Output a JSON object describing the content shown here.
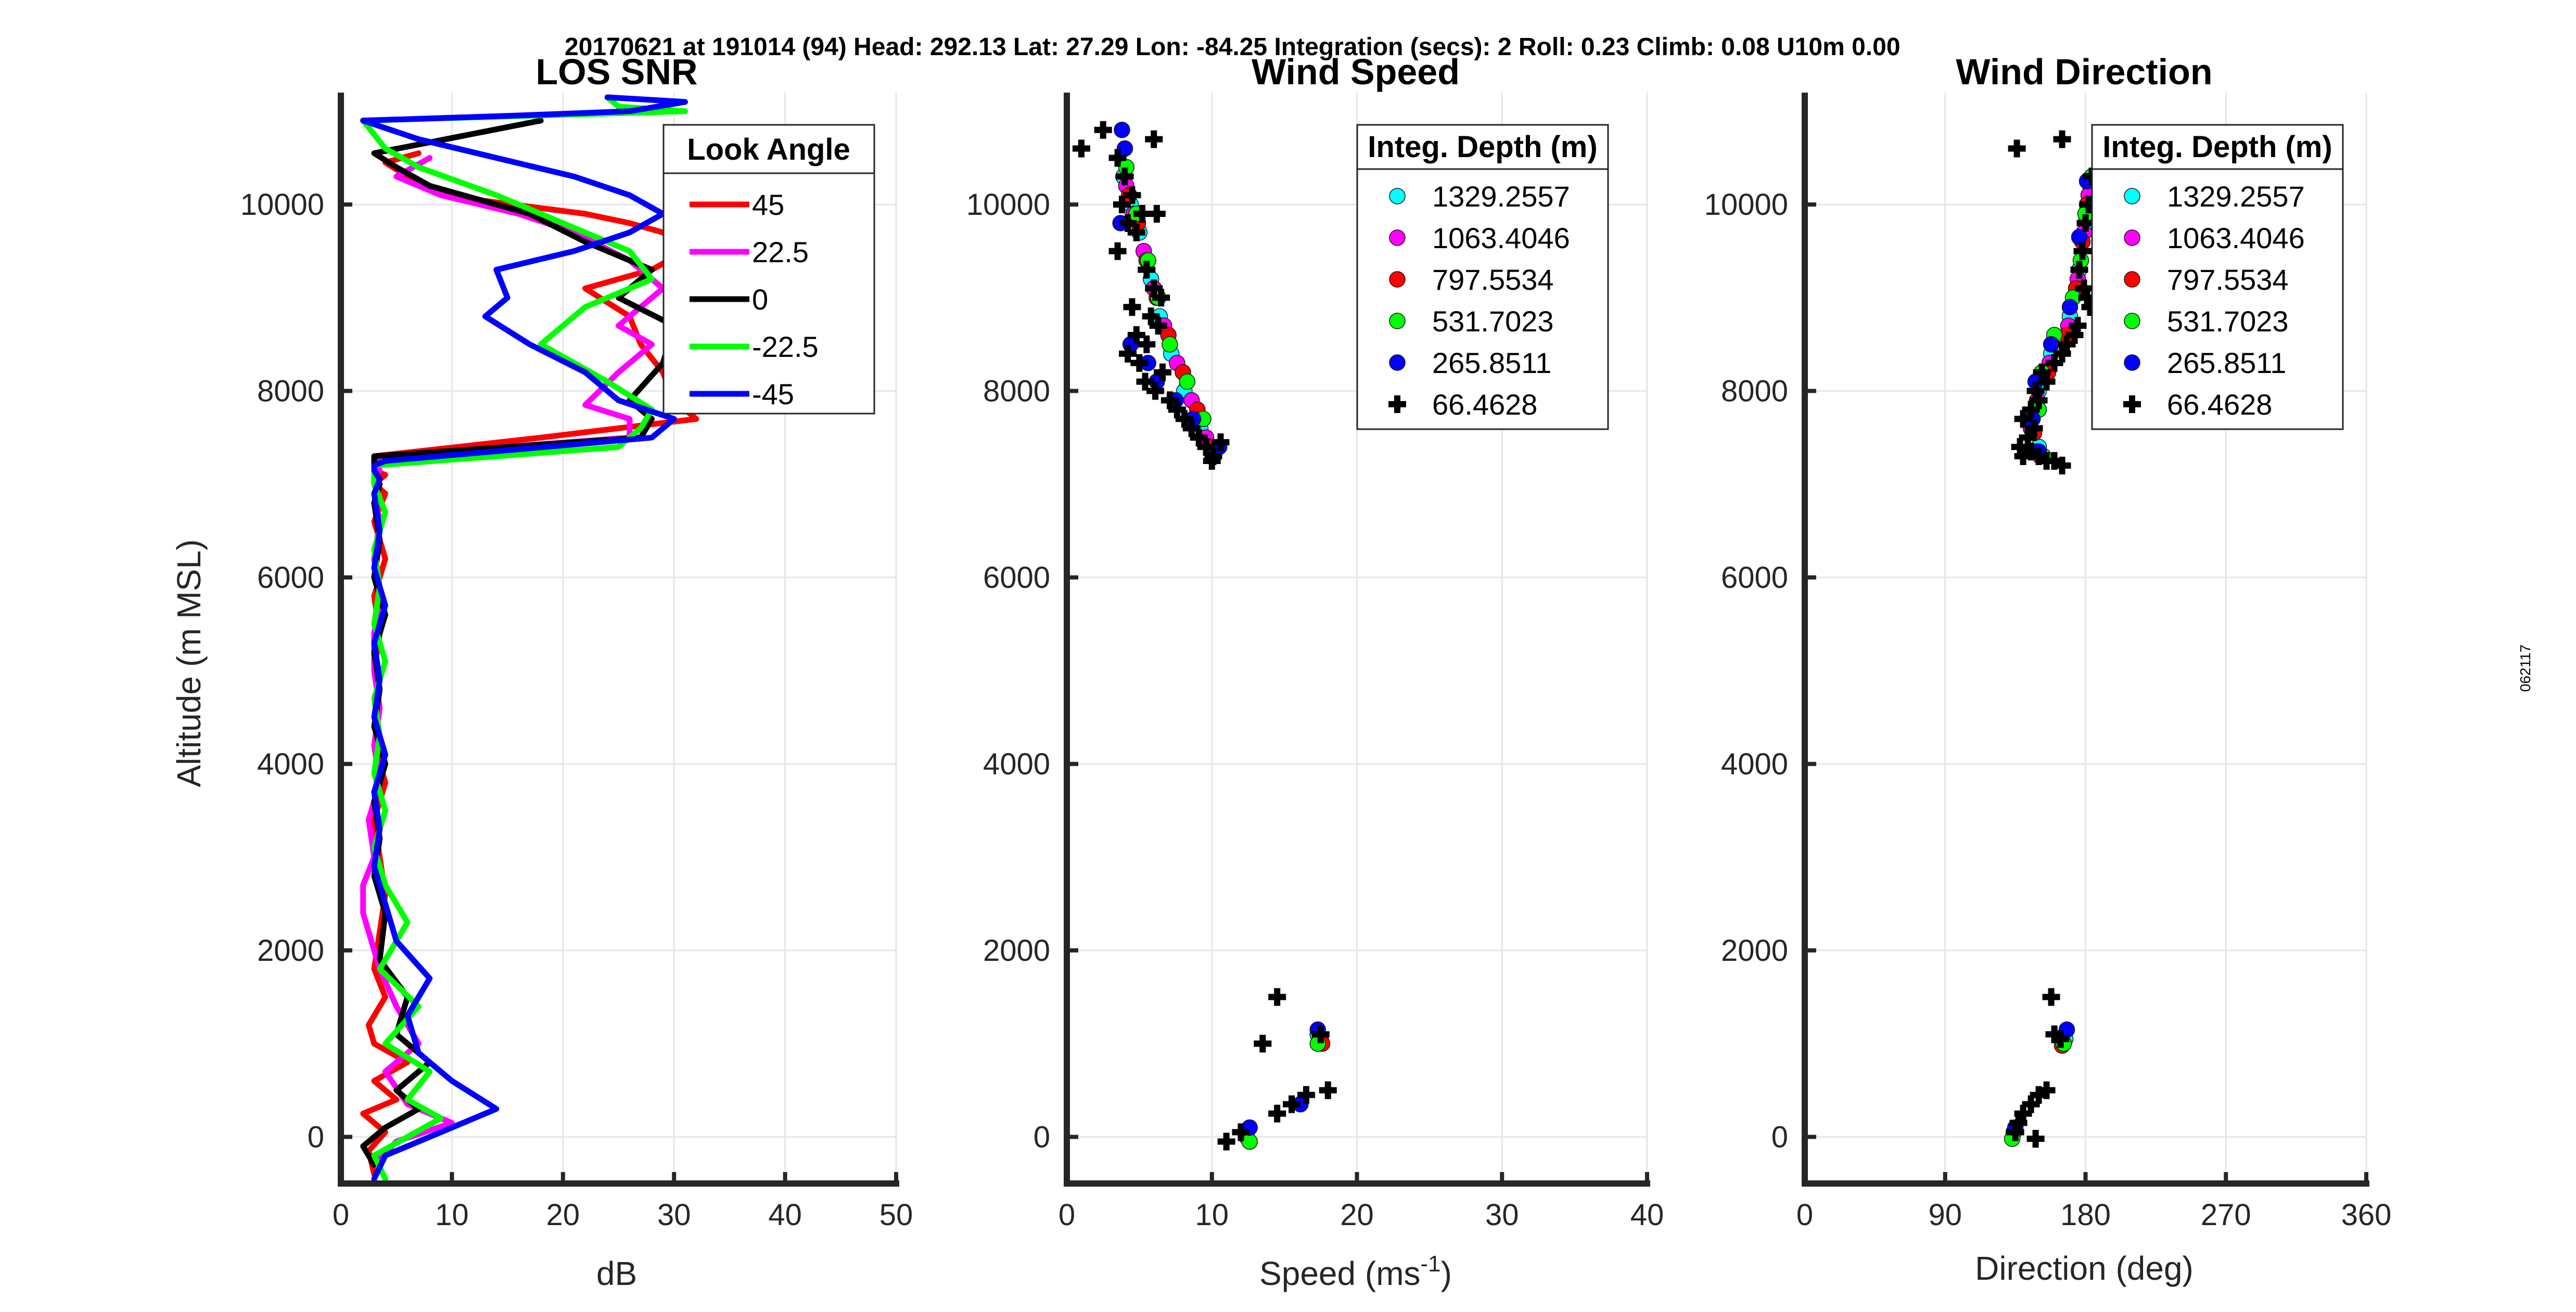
{
  "header": "20170621 at 191014 (94)  Head: 292.13  Lat: 27.29  Lon: -84.25  Integration (secs): 2  Roll: 0.23  Climb: 0.08  U10m 0.00",
  "side_id": "062117",
  "colors": {
    "red": "#ff0000",
    "magenta": "#ff00ff",
    "black": "#000000",
    "green": "#00ff00",
    "blue": "#0000ff",
    "cyan": "#00ffff",
    "grid": "#e6e6e6",
    "axis": "#262626"
  },
  "chart_data": [
    {
      "type": "line",
      "title": "LOS SNR",
      "xlabel": "dB",
      "ylabel": "Altitude (m MSL)",
      "xlim": [
        0,
        50
      ],
      "ylim": [
        -500,
        11200
      ],
      "xticks": [
        0,
        10,
        20,
        30,
        40,
        50
      ],
      "yticks": [
        0,
        2000,
        4000,
        6000,
        8000,
        10000
      ],
      "grid": true,
      "legend": {
        "title": "Look Angle",
        "placement": "top-right"
      },
      "series": [
        {
          "name": "45",
          "color": "#ff0000",
          "x": [
            3,
            2.5,
            4,
            2,
            5,
            3,
            6,
            3,
            2.5,
            4,
            3,
            3.5,
            4,
            3.5,
            3,
            4,
            3,
            3.5,
            3,
            3.5,
            3,
            4,
            3,
            4,
            3,
            3.5,
            4,
            3,
            3,
            3,
            18,
            32,
            30,
            29,
            27,
            26,
            22,
            28,
            31,
            29,
            26,
            22,
            9,
            6,
            4,
            7
          ],
          "y": [
            -400,
            -150,
            50,
            250,
            400,
            600,
            800,
            1000,
            1200,
            1500,
            1800,
            2200,
            2600,
            3000,
            3400,
            3800,
            4200,
            4600,
            5000,
            5400,
            5800,
            6200,
            6600,
            6900,
            7000,
            7050,
            7100,
            7150,
            7200,
            7300,
            7500,
            7700,
            7900,
            8200,
            8500,
            8800,
            9100,
            9300,
            9500,
            9700,
            9800,
            9900,
            10100,
            10300,
            10450,
            10550
          ]
        },
        {
          "name": "22.5",
          "color": "#ff00ff",
          "x": [
            3,
            5,
            10,
            6,
            4,
            7,
            5,
            3.5,
            2,
            2,
            3,
            2.5,
            3.5,
            3,
            3.5,
            3,
            3,
            3.5,
            3,
            3.5,
            3,
            3.5,
            3,
            3.5,
            3,
            3.5,
            26,
            26,
            22,
            25,
            28,
            25,
            29,
            26,
            21,
            16,
            9,
            5,
            8
          ],
          "y": [
            -300,
            -50,
            150,
            350,
            700,
            1000,
            1400,
            1800,
            2400,
            2700,
            3000,
            3400,
            3800,
            4200,
            4600,
            5000,
            5400,
            5800,
            6200,
            6600,
            6900,
            7000,
            7100,
            7150,
            7200,
            7300,
            7500,
            7700,
            7850,
            8200,
            8500,
            8700,
            9100,
            9400,
            9700,
            9900,
            10100,
            10300,
            10500
          ]
        },
        {
          "name": "0",
          "color": "#000000",
          "x": [
            3,
            2,
            4,
            7,
            5,
            8,
            5,
            6,
            3.5,
            4,
            3,
            3.5,
            3,
            4,
            3,
            3.5,
            3,
            4,
            3,
            3.5,
            3,
            3.5,
            3,
            3,
            3,
            27,
            28,
            26,
            29,
            30,
            25,
            28,
            22,
            17,
            8,
            5,
            3,
            18
          ],
          "y": [
            -300,
            -100,
            100,
            300,
            500,
            800,
            1100,
            1500,
            1900,
            2400,
            2800,
            3200,
            3600,
            4000,
            4400,
            4800,
            5200,
            5600,
            6000,
            6400,
            6800,
            7000,
            7100,
            7200,
            7300,
            7500,
            7700,
            7900,
            8300,
            8700,
            9000,
            9300,
            9600,
            9900,
            10200,
            10400,
            10550,
            10900
          ]
        },
        {
          "name": "-22.5",
          "color": "#00ff00",
          "x": [
            4,
            3,
            6,
            9,
            6,
            8,
            4,
            7,
            3.5,
            6,
            4,
            3,
            4,
            3,
            3.5,
            3,
            4,
            3,
            3.5,
            3,
            4,
            3,
            3,
            3,
            25,
            27,
            28,
            24,
            18,
            22,
            28,
            26,
            20,
            14,
            7,
            4,
            2,
            31,
            25,
            24
          ],
          "y": [
            -450,
            -200,
            0,
            200,
            400,
            700,
            1000,
            1400,
            1800,
            2300,
            2700,
            3100,
            3500,
            3900,
            4300,
            4700,
            5100,
            5500,
            5900,
            6300,
            6700,
            7000,
            7100,
            7200,
            7400,
            7600,
            7800,
            8100,
            8500,
            8900,
            9200,
            9500,
            9800,
            10100,
            10400,
            10600,
            10900,
            11000,
            11050,
            11150
          ]
        },
        {
          "name": "-45",
          "color": "#0000ff",
          "x": [
            3,
            4,
            8,
            14,
            10,
            7,
            6,
            8,
            5,
            4,
            3,
            3.5,
            3,
            4,
            3,
            3.5,
            3,
            4,
            3,
            3.5,
            3,
            3.5,
            3,
            3,
            4,
            28,
            30,
            25,
            22,
            17,
            13,
            15,
            14,
            21,
            26,
            29,
            26,
            21,
            14,
            7,
            2,
            15,
            26,
            31,
            24
          ],
          "y": [
            -450,
            -200,
            0,
            300,
            600,
            900,
            1300,
            1700,
            2100,
            2500,
            2900,
            3300,
            3700,
            4100,
            4500,
            4900,
            5300,
            5700,
            6100,
            6500,
            6900,
            7050,
            7150,
            7200,
            7250,
            7500,
            7700,
            7900,
            8200,
            8500,
            8800,
            9000,
            9300,
            9500,
            9700,
            9900,
            10100,
            10300,
            10500,
            10700,
            10900,
            10950,
            11000,
            11100,
            11150
          ]
        }
      ]
    },
    {
      "type": "scatter",
      "title": "Wind Speed",
      "xlabel": "Speed (ms",
      "xlabel_sup": "-1",
      "xlabel_close": ")",
      "ylim": [
        -500,
        11200
      ],
      "xlim": [
        0,
        40
      ],
      "xticks": [
        0,
        10,
        20,
        30,
        40
      ],
      "yticks": [
        0,
        2000,
        4000,
        6000,
        8000,
        10000
      ],
      "grid": true,
      "legend": {
        "title": "Integ. Depth (m)",
        "placement": "top-right"
      },
      "series": [
        {
          "name": "1329.2557",
          "color": "#00ffff",
          "marker": "circle",
          "x": [
            3.9,
            4.4,
            5,
            5.8,
            6.4,
            7.2,
            8.1,
            9.2,
            17.3
          ],
          "y": [
            10300,
            10000,
            9700,
            9200,
            8800,
            8400,
            8000,
            7600,
            1100
          ]
        },
        {
          "name": "1063.4046",
          "color": "#ff00ff",
          "marker": "circle",
          "x": [
            4.1,
            4.6,
            5.3,
            6,
            6.7,
            7.6,
            8.6,
            9.6,
            17.5
          ],
          "y": [
            10200,
            9900,
            9500,
            9100,
            8700,
            8300,
            7900,
            7500,
            1050
          ]
        },
        {
          "name": "797.5534",
          "color": "#ff0000",
          "marker": "circle",
          "x": [
            4.3,
            4.9,
            5.5,
            6.2,
            7,
            8,
            9,
            10,
            17.6
          ],
          "y": [
            10100,
            9800,
            9400,
            9000,
            8600,
            8200,
            7800,
            7400,
            1000
          ]
        },
        {
          "name": "531.7023",
          "color": "#00ff00",
          "marker": "circle",
          "x": [
            4.1,
            4.8,
            5.6,
            6.3,
            7.1,
            8.3,
            9.4,
            17.3,
            12.4,
            12.6
          ],
          "y": [
            10400,
            9900,
            9400,
            9000,
            8500,
            8100,
            7700,
            1000,
            0,
            -50
          ]
        },
        {
          "name": "265.8511",
          "color": "#0000ff",
          "marker": "circle",
          "x": [
            3.8,
            4,
            3.7,
            4.4,
            5.6,
            6.2,
            7.5,
            8.7,
            10.5,
            17.3,
            16.1,
            12.6
          ],
          "y": [
            10800,
            10600,
            9800,
            8500,
            8300,
            8100,
            7900,
            7700,
            7400,
            1150,
            350,
            100
          ]
        },
        {
          "name": "66.4628",
          "color": "#000000",
          "marker": "plus",
          "x": [
            1,
            2.5,
            3.5,
            4,
            6,
            4.5,
            3.8,
            5.2,
            4.2,
            4.8,
            6.2,
            3.5,
            5.5,
            6,
            4.5,
            5.8,
            6.5,
            4.8,
            5.5,
            6.3,
            4.2,
            5,
            6.6,
            5.4,
            6.1,
            7.1,
            7.6,
            8.1,
            8.6,
            9.1,
            9.6,
            10.1,
            10.6,
            10,
            14.5,
            13.5,
            17.5,
            18,
            16.5,
            15.5,
            14.5,
            12,
            11
          ],
          "y": [
            10600,
            10800,
            10500,
            10300,
            10700,
            10100,
            10000,
            9900,
            9800,
            9700,
            9900,
            9500,
            9300,
            9100,
            8900,
            8800,
            9000,
            8600,
            8500,
            8700,
            8400,
            8300,
            8200,
            8100,
            8000,
            7900,
            7800,
            7700,
            7600,
            7500,
            7400,
            7300,
            7450,
            7250,
            1500,
            1000,
            1100,
            500,
            450,
            350,
            250,
            50,
            -50
          ]
        }
      ]
    },
    {
      "type": "scatter",
      "title": "Wind Direction",
      "xlabel": "Direction (deg)",
      "ylim": [
        -500,
        11200
      ],
      "xlim": [
        0,
        360
      ],
      "xticks": [
        0,
        90,
        180,
        270,
        360
      ],
      "yticks": [
        0,
        2000,
        4000,
        6000,
        8000,
        10000
      ],
      "grid": true,
      "legend": {
        "title": "Integ. Depth (m)",
        "placement": "top-right"
      },
      "series": [
        {
          "name": "1329.2557",
          "color": "#00ffff",
          "marker": "circle",
          "x": [
            183,
            180,
            176,
            170,
            158,
            150,
            146,
            150,
            167
          ],
          "y": [
            10200,
            9800,
            9300,
            8800,
            8400,
            8000,
            7700,
            7400,
            1050
          ]
        },
        {
          "name": "1063.4046",
          "color": "#ff00ff",
          "marker": "circle",
          "x": [
            182,
            179,
            175,
            169,
            157,
            149,
            145,
            149,
            166
          ],
          "y": [
            10100,
            9700,
            9200,
            8700,
            8300,
            7900,
            7600,
            7350,
            1000
          ]
        },
        {
          "name": "797.5534",
          "color": "#ff0000",
          "marker": "circle",
          "x": [
            181,
            178,
            174,
            168,
            156,
            148,
            147,
            151,
            165
          ],
          "y": [
            10000,
            9600,
            9100,
            8600,
            8200,
            7800,
            7550,
            7300,
            980
          ]
        },
        {
          "name": "531.7023",
          "color": "#00ff00",
          "marker": "circle",
          "x": [
            184,
            180,
            177,
            172,
            160,
            152,
            150,
            153,
            166,
            134,
            133
          ],
          "y": [
            10300,
            9900,
            9400,
            9000,
            8600,
            8200,
            7800,
            7300,
            1000,
            50,
            -20
          ]
        },
        {
          "name": "265.8511",
          "color": "#0000ff",
          "marker": "circle",
          "x": [
            181,
            176,
            170,
            158,
            148,
            146,
            150,
            168,
            135
          ],
          "y": [
            10250,
            9650,
            8900,
            8500,
            8100,
            7700,
            7350,
            1150,
            100
          ]
        },
        {
          "name": "66.4628",
          "color": "#000000",
          "marker": "plus",
          "x": [
            165,
            136,
            184,
            182,
            180,
            178,
            176,
            179,
            181,
            183,
            175,
            173,
            168,
            165,
            160,
            152,
            155,
            148,
            150,
            145,
            140,
            147,
            143,
            138,
            140,
            145,
            150,
            155,
            160,
            165,
            158,
            160,
            164,
            155,
            150,
            145,
            140,
            137,
            135,
            148
          ],
          "y": [
            10700,
            10600,
            10300,
            10000,
            9800,
            9500,
            9300,
            9100,
            9000,
            8900,
            8700,
            8600,
            8500,
            8400,
            8300,
            8200,
            8100,
            8000,
            7900,
            7800,
            7700,
            7600,
            7500,
            7400,
            7300,
            7350,
            7300,
            7250,
            7250,
            7200,
            1500,
            1100,
            1050,
            500,
            450,
            350,
            250,
            150,
            50,
            -20
          ]
        }
      ]
    }
  ]
}
